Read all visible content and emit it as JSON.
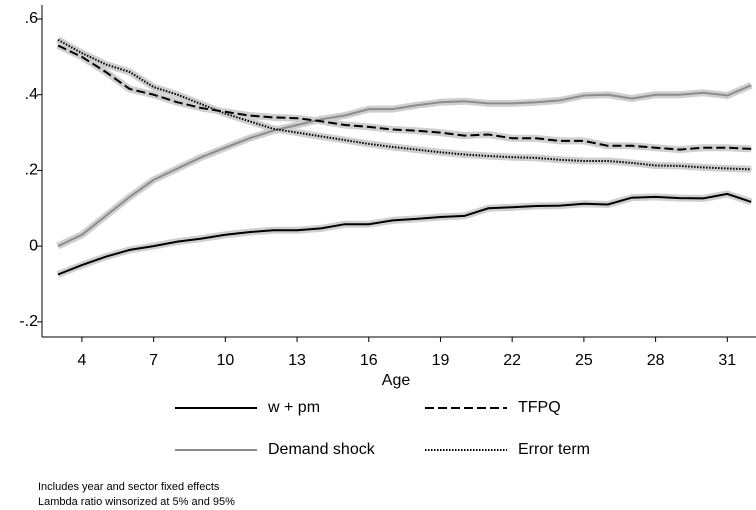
{
  "chart_data": {
    "type": "line",
    "x_label": "Age",
    "x": [
      3,
      4,
      5,
      6,
      7,
      8,
      9,
      10,
      11,
      12,
      13,
      14,
      15,
      16,
      17,
      18,
      19,
      20,
      21,
      22,
      23,
      24,
      25,
      26,
      27,
      28,
      29,
      30,
      31,
      32
    ],
    "xlim": [
      2.33,
      32.2
    ],
    "xticks": [
      4,
      7,
      10,
      13,
      16,
      19,
      22,
      25,
      28,
      31
    ],
    "ylim": [
      -0.24,
      0.637
    ],
    "yticks": [
      {
        "value": -0.2,
        "label": "-.2"
      },
      0,
      {
        "value": 0.2,
        "label": ".2"
      },
      {
        "value": 0.4,
        "label": ".4"
      },
      {
        "value": 0.6,
        "label": ".6"
      }
    ],
    "series": [
      {
        "name": "w + pm",
        "color": "#000000",
        "dash": "solid",
        "values": [
          -0.075,
          -0.05,
          -0.028,
          -0.01,
          0.0,
          0.012,
          0.02,
          0.03,
          0.037,
          0.042,
          0.042,
          0.047,
          0.058,
          0.058,
          0.068,
          0.072,
          0.077,
          0.08,
          0.1,
          0.103,
          0.106,
          0.107,
          0.112,
          0.11,
          0.128,
          0.13,
          0.127,
          0.126,
          0.138,
          0.117
        ]
      },
      {
        "name": "Demand shock",
        "color": "#8c8c8c",
        "dash": "solid",
        "values": [
          0.0,
          0.03,
          0.08,
          0.13,
          0.175,
          0.205,
          0.235,
          0.26,
          0.285,
          0.305,
          0.32,
          0.335,
          0.345,
          0.362,
          0.362,
          0.372,
          0.38,
          0.383,
          0.377,
          0.377,
          0.38,
          0.385,
          0.398,
          0.4,
          0.39,
          0.4,
          0.4,
          0.405,
          0.398,
          0.425
        ]
      },
      {
        "name": "TFPQ",
        "color": "#000000",
        "dash": "dashed",
        "values": [
          0.53,
          0.5,
          0.46,
          0.415,
          0.4,
          0.38,
          0.365,
          0.355,
          0.345,
          0.34,
          0.338,
          0.33,
          0.32,
          0.315,
          0.308,
          0.305,
          0.3,
          0.292,
          0.295,
          0.285,
          0.285,
          0.278,
          0.278,
          0.265,
          0.265,
          0.26,
          0.255,
          0.26,
          0.26,
          0.257
        ]
      },
      {
        "name": "Error term",
        "color": "#000000",
        "dash": "dotted",
        "values": [
          0.545,
          0.51,
          0.48,
          0.46,
          0.42,
          0.4,
          0.375,
          0.35,
          0.33,
          0.31,
          0.3,
          0.29,
          0.28,
          0.27,
          0.262,
          0.255,
          0.248,
          0.242,
          0.238,
          0.235,
          0.233,
          0.228,
          0.225,
          0.225,
          0.22,
          0.213,
          0.212,
          0.208,
          0.205,
          0.203
        ]
      }
    ],
    "notes": [
      "Includes year and sector fixed effects",
      "Lambda ratio winsorized at 5% and 95%"
    ]
  }
}
